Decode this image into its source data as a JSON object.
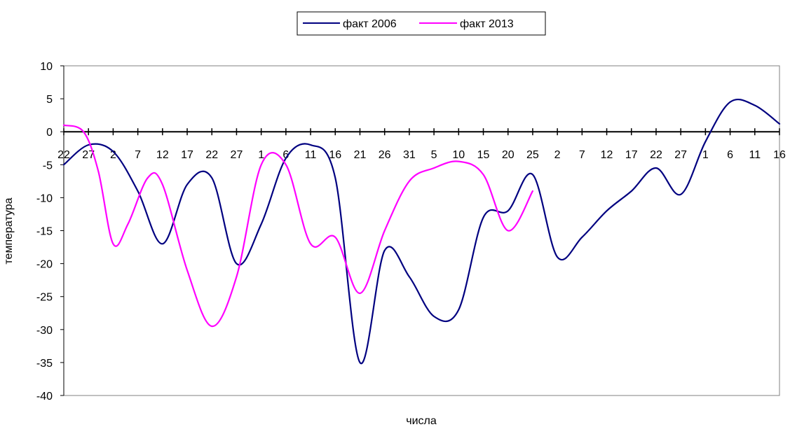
{
  "chart_data": {
    "type": "line",
    "xlabel": "числа",
    "ylabel": "температура",
    "ylim": [
      -40,
      10
    ],
    "yticks": [
      10,
      5,
      0,
      -5,
      -10,
      -15,
      -20,
      -25,
      -30,
      -35,
      -40
    ],
    "grid": false,
    "legend_position": "top",
    "categories": [
      "22",
      "27",
      "2",
      "7",
      "12",
      "17",
      "22",
      "27",
      "1",
      "6",
      "11",
      "16",
      "21",
      "26",
      "31",
      "5",
      "10",
      "15",
      "20",
      "25",
      "2",
      "7",
      "12",
      "17",
      "22",
      "27",
      "1",
      "6",
      "11",
      "16"
    ],
    "x": [
      0,
      5,
      10,
      15,
      20,
      25,
      30,
      35,
      40,
      45,
      50,
      55,
      60,
      65,
      70,
      75,
      80,
      85,
      90,
      95,
      100,
      105,
      110,
      115,
      120,
      125,
      130,
      135,
      140,
      145
    ],
    "series": [
      {
        "name": "факт 2006",
        "color": "#000080",
        "x": [
          0,
          5,
          10,
          15,
          20,
          25,
          30,
          35,
          40,
          45,
          50,
          55,
          60,
          65,
          70,
          75,
          80,
          85,
          90,
          95,
          100,
          105,
          110,
          115,
          120,
          125,
          130,
          135,
          140,
          145
        ],
        "values": [
          -5,
          -2,
          -3,
          -9,
          -17,
          -8,
          -7,
          -20,
          -14,
          -4,
          -2,
          -7,
          -35,
          -18,
          -22,
          -28,
          -27,
          -13,
          -12,
          -6.5,
          -19,
          -16,
          -12,
          -9,
          -5.5,
          -9.5,
          -1.5,
          4.5,
          4,
          1.2
        ]
      },
      {
        "name": "факт 2013",
        "color": "#FF00FF",
        "x": [
          0,
          4,
          7,
          10,
          13,
          17,
          20,
          25,
          30,
          35,
          40,
          45,
          50,
          55,
          60,
          65,
          70,
          75,
          80,
          85,
          90,
          95
        ],
        "values": [
          1,
          0,
          -6,
          -17,
          -14,
          -7,
          -8,
          -21,
          -29.5,
          -22,
          -5,
          -5,
          -17,
          -16,
          -24.5,
          -15,
          -7.5,
          -5.5,
          -4.5,
          -6.5,
          -15,
          -9
        ]
      }
    ]
  }
}
